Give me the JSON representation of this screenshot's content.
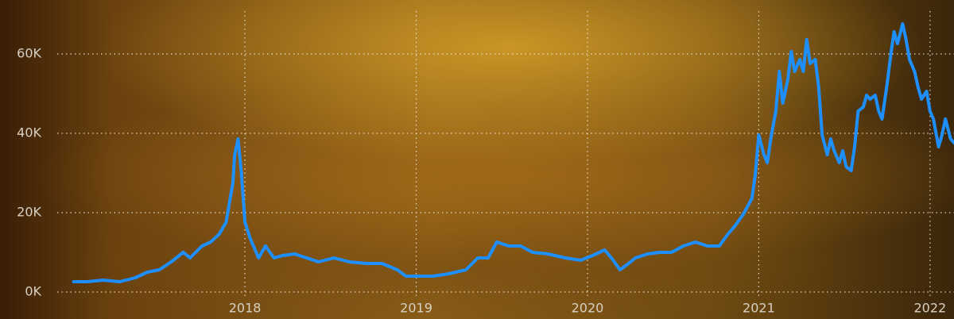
{
  "chart_data": {
    "type": "line",
    "x": [
      2017.0,
      2017.08,
      2017.17,
      2017.27,
      2017.36,
      2017.43,
      2017.5,
      2017.57,
      2017.64,
      2017.68,
      2017.75,
      2017.8,
      2017.85,
      2017.89,
      2017.93,
      2017.94,
      2017.96,
      2017.98,
      2018.0,
      2018.03,
      2018.08,
      2018.12,
      2018.17,
      2018.22,
      2018.29,
      2018.36,
      2018.43,
      2018.52,
      2018.61,
      2018.71,
      2018.8,
      2018.89,
      2018.94,
      2019.01,
      2019.1,
      2019.19,
      2019.29,
      2019.36,
      2019.42,
      2019.47,
      2019.54,
      2019.61,
      2019.68,
      2019.77,
      2019.87,
      2019.96,
      2020.03,
      2020.1,
      2020.14,
      2020.19,
      2020.24,
      2020.28,
      2020.35,
      2020.42,
      2020.49,
      2020.56,
      2020.63,
      2020.7,
      2020.77,
      2020.82,
      2020.86,
      2020.91,
      2020.96,
      2020.98,
      2021.0,
      2021.03,
      2021.05,
      2021.07,
      2021.1,
      2021.12,
      2021.14,
      2021.17,
      2021.19,
      2021.21,
      2021.24,
      2021.26,
      2021.28,
      2021.3,
      2021.33,
      2021.35,
      2021.37,
      2021.4,
      2021.42,
      2021.44,
      2021.47,
      2021.49,
      2021.51,
      2021.54,
      2021.56,
      2021.58,
      2021.61,
      2021.63,
      2021.65,
      2021.68,
      2021.7,
      2021.72,
      2021.75,
      2021.77,
      2021.79,
      2021.81,
      2021.84,
      2021.86,
      2021.88,
      2021.91,
      2021.93,
      2021.95,
      2021.98,
      2022.0,
      2022.02,
      2022.05,
      2022.07,
      2022.09,
      2022.12,
      2022.14
    ],
    "values": [
      2600,
      2600,
      3000,
      2600,
      3600,
      5000,
      5600,
      7600,
      10000,
      8600,
      11600,
      12600,
      14600,
      17600,
      27600,
      34600,
      38600,
      29600,
      17600,
      13600,
      8600,
      11600,
      8600,
      9200,
      9600,
      8600,
      7600,
      8600,
      7600,
      7200,
      7200,
      5600,
      4000,
      4000,
      4000,
      4600,
      5600,
      8600,
      8600,
      12600,
      11600,
      11600,
      10000,
      9600,
      8600,
      8000,
      9200,
      10600,
      8600,
      5600,
      7200,
      8600,
      9600,
      10000,
      10000,
      11600,
      12600,
      11600,
      11600,
      14600,
      16600,
      19600,
      23600,
      29600,
      39600,
      34600,
      32600,
      38600,
      45600,
      55600,
      47600,
      53600,
      60600,
      55600,
      58600,
      55600,
      63600,
      57600,
      58600,
      51600,
      39600,
      34600,
      38600,
      35600,
      32600,
      35600,
      31600,
      30600,
      36600,
      45600,
      46600,
      49600,
      48600,
      49600,
      45600,
      43600,
      52600,
      59600,
      65600,
      62600,
      67600,
      63600,
      58600,
      55600,
      51600,
      48600,
      50600,
      45600,
      43600,
      36600,
      39600,
      43600,
      38600,
      37600
    ],
    "color": "#1e8fff",
    "xlim": [
      2016.57,
      2022.14
    ],
    "xticks": [
      2018,
      2019,
      2020,
      2021,
      2022
    ],
    "ylim": [
      -6800,
      73600
    ],
    "yticks": [
      {
        "value": 0,
        "label": "0K"
      },
      {
        "value": 20000,
        "label": "20K"
      },
      {
        "value": 40000,
        "label": "40K"
      },
      {
        "value": 60000,
        "label": "60K"
      }
    ],
    "grid": true
  }
}
